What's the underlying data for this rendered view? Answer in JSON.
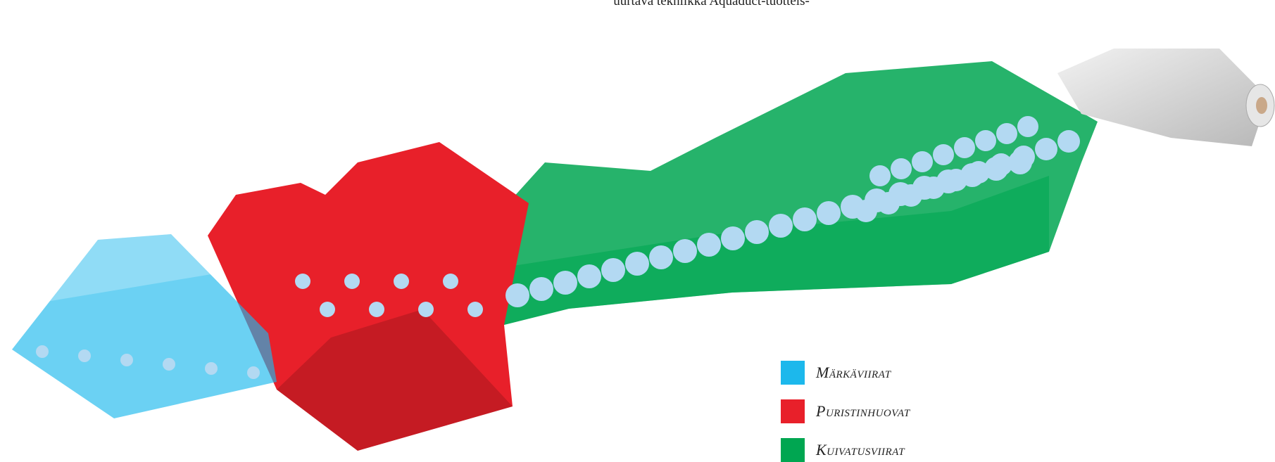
{
  "header_text": "uurtava tekniikka Aquaduct-tuotteis-",
  "legend": [
    {
      "label": "Märkäviirat",
      "color": "#1cb8ec"
    },
    {
      "label": "Puristinhuovat",
      "color": "#e8202a"
    },
    {
      "label": "Kuivatusviirat",
      "color": "#00a651"
    }
  ]
}
